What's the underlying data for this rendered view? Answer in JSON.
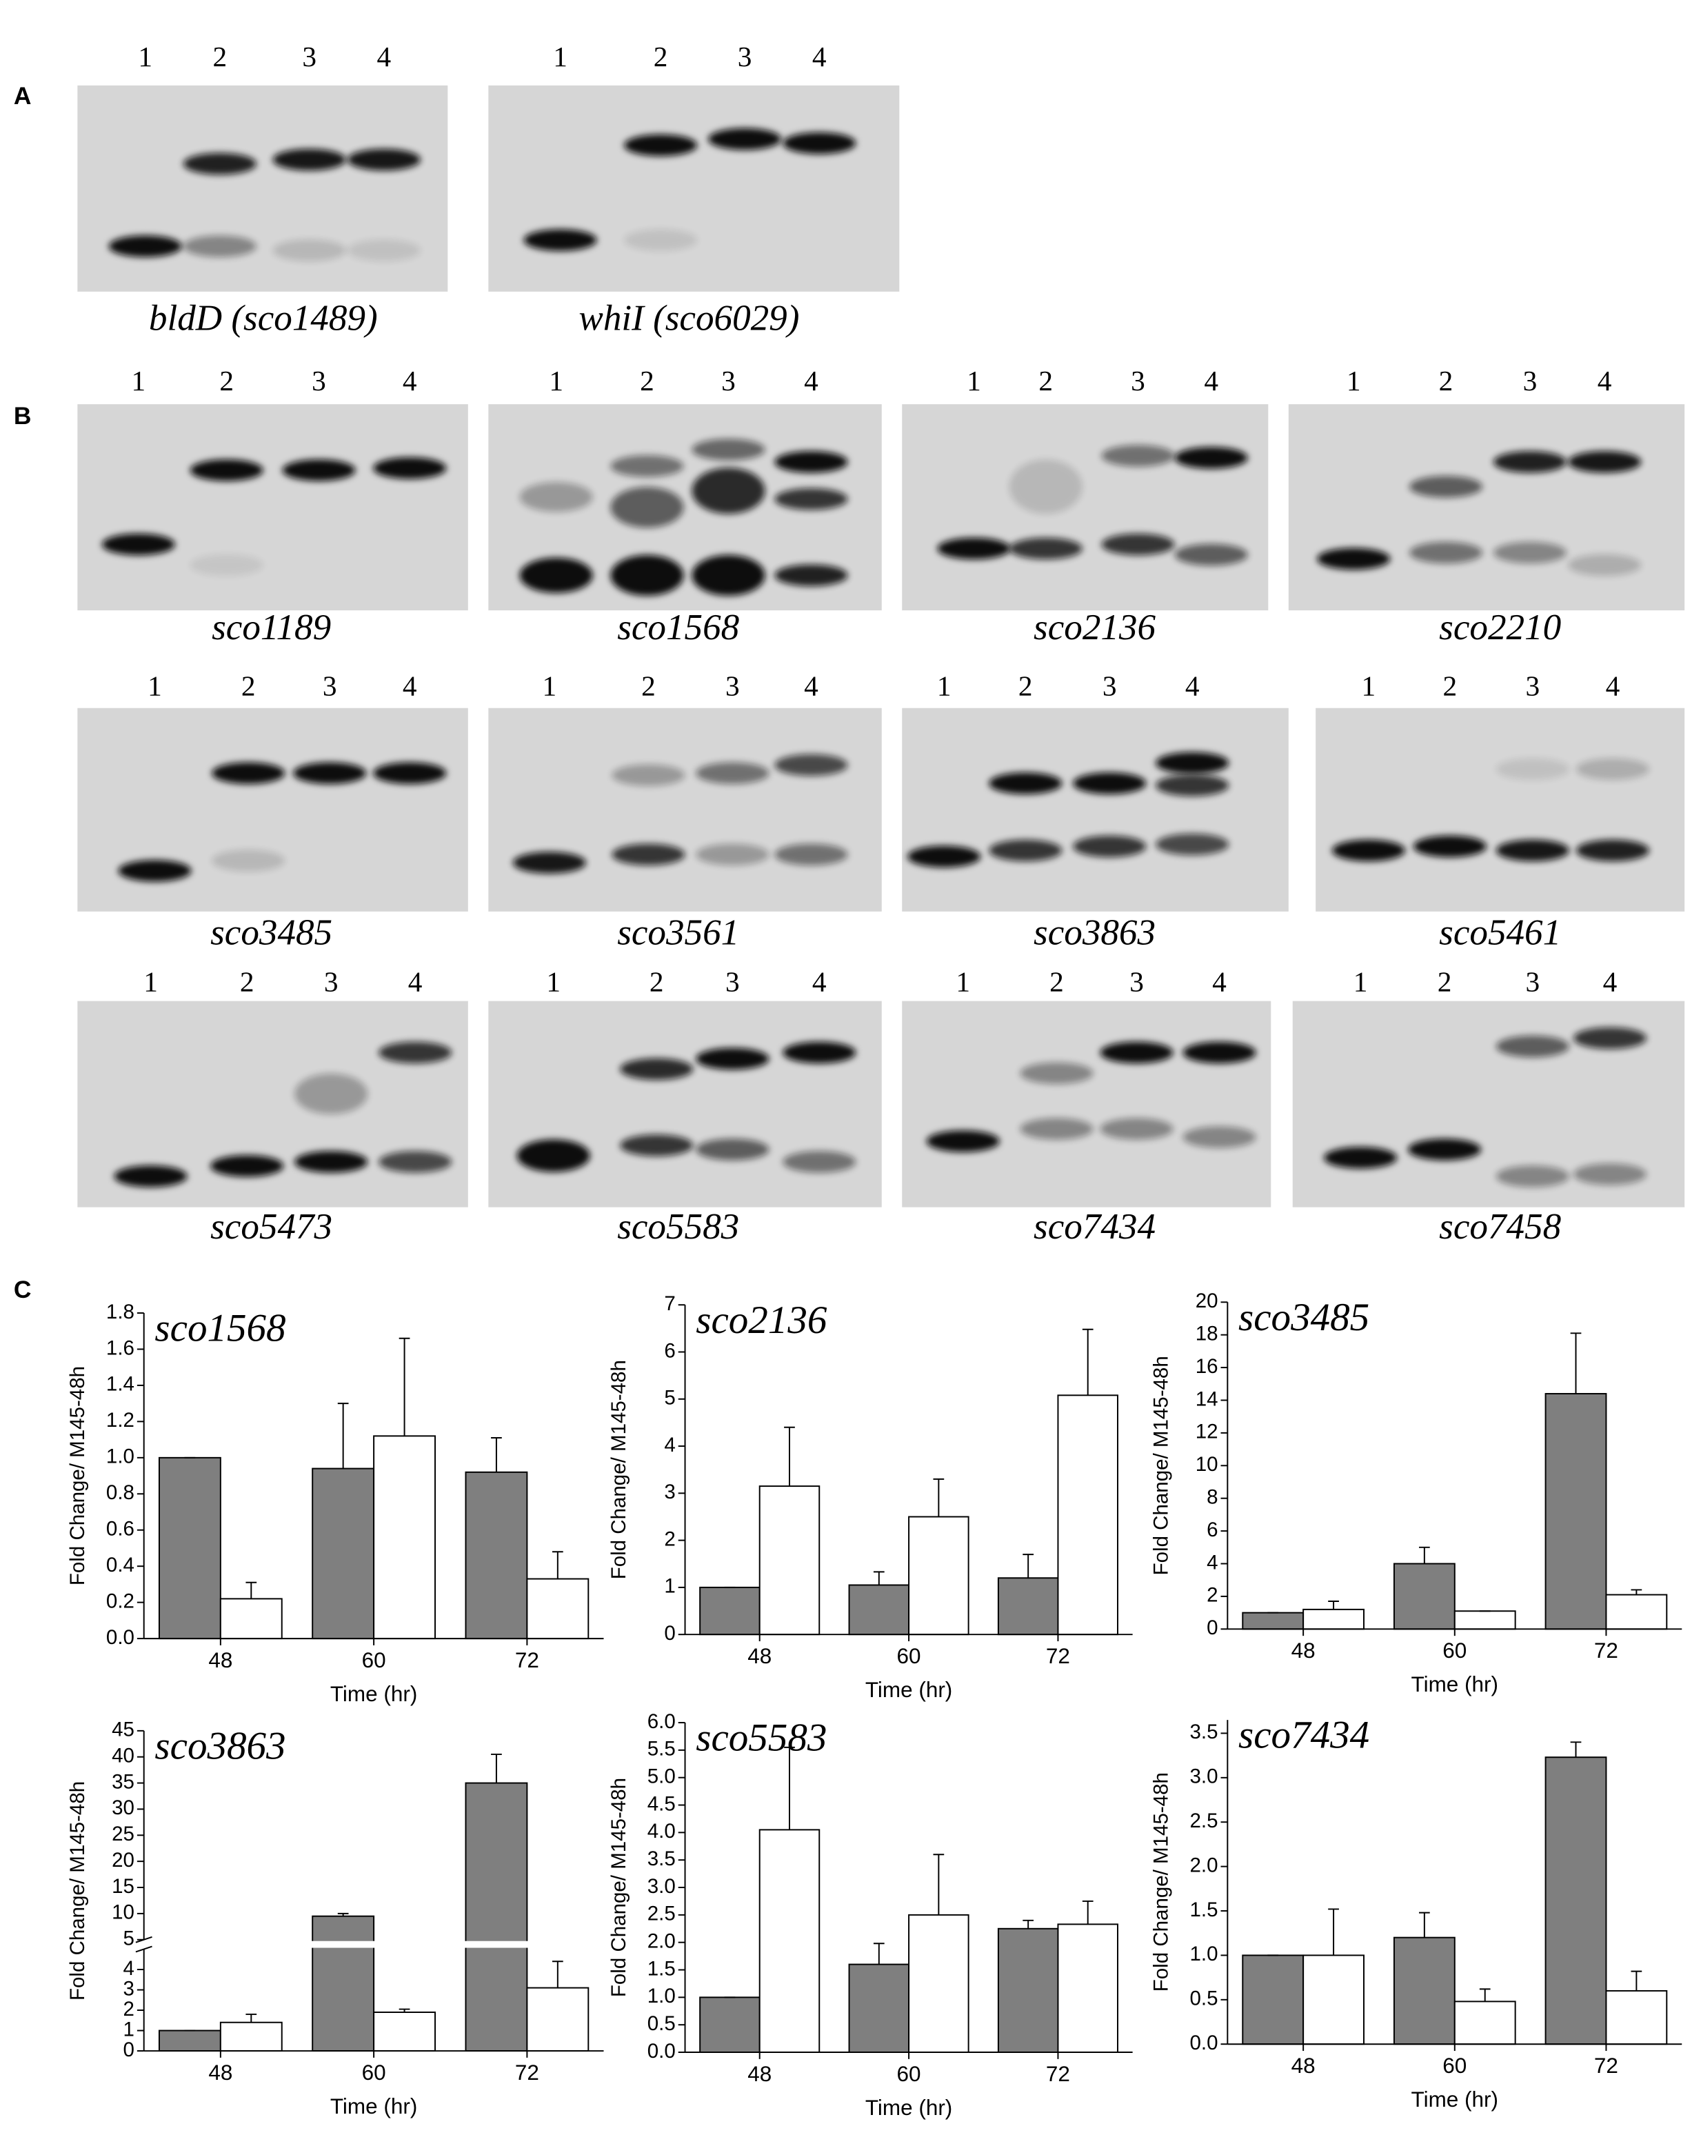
{
  "panel_labels": [
    "A",
    "B",
    "C"
  ],
  "gels": [
    {
      "lanes": [
        "1",
        "2",
        "3",
        "4"
      ],
      "caption": "bldD (sco1489)"
    },
    {
      "lanes": [
        "1",
        "2",
        "3",
        "4"
      ],
      "caption": "whiI (sco6029)"
    },
    {
      "lanes": [
        "1",
        "2",
        "3",
        "4"
      ],
      "caption": "sco1189"
    },
    {
      "lanes": [
        "1",
        "2",
        "3",
        "4"
      ],
      "caption": "sco1568"
    },
    {
      "lanes": [
        "1",
        "2",
        "3",
        "4"
      ],
      "caption": "sco2136"
    },
    {
      "lanes": [
        "1",
        "2",
        "3",
        "4"
      ],
      "caption": "sco2210"
    },
    {
      "lanes": [
        "1",
        "2",
        "3",
        "4"
      ],
      "caption": "sco3485"
    },
    {
      "lanes": [
        "1",
        "2",
        "3",
        "4"
      ],
      "caption": "sco3561"
    },
    {
      "lanes": [
        "1",
        "2",
        "3",
        "4"
      ],
      "caption": "sco3863"
    },
    {
      "lanes": [
        "1",
        "2",
        "3",
        "4"
      ],
      "caption": "sco5461"
    },
    {
      "lanes": [
        "1",
        "2",
        "3",
        "4"
      ],
      "caption": "sco5473"
    },
    {
      "lanes": [
        "1",
        "2",
        "3",
        "4"
      ],
      "caption": "sco5583"
    },
    {
      "lanes": [
        "1",
        "2",
        "3",
        "4"
      ],
      "caption": "sco7434"
    },
    {
      "lanes": [
        "1",
        "2",
        "3",
        "4"
      ],
      "caption": "sco7458"
    }
  ],
  "chart_data": [
    {
      "type": "bar",
      "title": "sco1568",
      "categories": [
        "48",
        "60",
        "72"
      ],
      "x_label": "Time (hr)",
      "y_label": "Fold Change/ M145-48h",
      "ylim": [
        0,
        1.8
      ],
      "yticks": [
        {
          "value": 0,
          "label": "0.0"
        },
        0.2,
        0.4,
        0.6,
        0.8,
        {
          "value": 1,
          "label": "1.0"
        },
        1.2,
        1.4,
        1.6,
        1.8
      ],
      "series": [
        {
          "color": "#7f7f7f",
          "values": [
            1.0,
            0.94,
            0.92
          ],
          "errors": [
            0,
            0.36,
            0.19
          ]
        },
        {
          "color": "#ffffff",
          "values": [
            0.22,
            1.12,
            0.33
          ],
          "errors": [
            0.09,
            0.54,
            0.15
          ]
        }
      ]
    },
    {
      "type": "bar",
      "title": "sco2136",
      "categories": [
        "48",
        "60",
        "72"
      ],
      "x_label": "Time (hr)",
      "y_label": "Fold Change/ M145-48h",
      "ylim": [
        0,
        7
      ],
      "yticks": [
        0,
        1,
        2,
        3,
        4,
        5,
        6,
        7
      ],
      "series": [
        {
          "color": "#7f7f7f",
          "values": [
            1,
            1.05,
            1.2
          ],
          "errors": [
            0,
            0.28,
            0.5
          ]
        },
        {
          "color": "#ffffff",
          "values": [
            3.15,
            2.5,
            5.08
          ],
          "errors": [
            1.25,
            0.8,
            1.4
          ]
        }
      ]
    },
    {
      "type": "bar",
      "title": "sco3485",
      "categories": [
        "48",
        "60",
        "72"
      ],
      "x_label": "Time (hr)",
      "y_label": "Fold Change/ M145-48h",
      "ylim": [
        0,
        20
      ],
      "yticks": [
        0,
        2,
        4,
        6,
        8,
        10,
        12,
        14,
        16,
        18,
        20
      ],
      "series": [
        {
          "color": "#7f7f7f",
          "values": [
            1,
            4,
            14.4
          ],
          "errors": [
            0,
            1,
            3.7
          ]
        },
        {
          "color": "#ffffff",
          "values": [
            1.2,
            1.1,
            2.1
          ],
          "errors": [
            0.5,
            0,
            0.3
          ]
        }
      ]
    },
    {
      "type": "bar",
      "title": "sco3863",
      "categories": [
        "48",
        "60",
        "72"
      ],
      "x_label": "Time (hr)",
      "y_label": "Fold Change/ M145-48h",
      "ylim": [
        0,
        45
      ],
      "ybreak": 5,
      "yticks": [
        0,
        1,
        2,
        3,
        4,
        5,
        10,
        15,
        20,
        25,
        30,
        35,
        40,
        45
      ],
      "series": [
        {
          "color": "#7f7f7f",
          "values": [
            1,
            9.5,
            35
          ],
          "errors": [
            0,
            0.5,
            5.5
          ]
        },
        {
          "color": "#ffffff",
          "values": [
            1.4,
            1.9,
            3.1
          ],
          "errors": [
            0.4,
            0.15,
            1.3
          ]
        }
      ]
    },
    {
      "type": "bar",
      "title": "sco5583",
      "categories": [
        "48",
        "60",
        "72"
      ],
      "x_label": "Time (hr)",
      "y_label": "Fold Change/ M145-48h",
      "ylim": [
        0,
        6
      ],
      "yticks": [
        {
          "value": 0,
          "label": "0.0"
        },
        0.5,
        {
          "value": 1,
          "label": "1.0"
        },
        1.5,
        {
          "value": 2,
          "label": "2.0"
        },
        2.5,
        {
          "value": 3,
          "label": "3.0"
        },
        3.5,
        {
          "value": 4,
          "label": "4.0"
        },
        4.5,
        {
          "value": 5,
          "label": "5.0"
        },
        5.5,
        {
          "value": 6,
          "label": "6.0"
        }
      ],
      "series": [
        {
          "color": "#7f7f7f",
          "values": [
            1,
            1.6,
            2.25
          ],
          "errors": [
            0,
            0.38,
            0.15
          ]
        },
        {
          "color": "#ffffff",
          "values": [
            4.05,
            2.5,
            2.33
          ],
          "errors": [
            1.5,
            1.1,
            0.42
          ]
        }
      ]
    },
    {
      "type": "bar",
      "title": "sco7434",
      "categories": [
        "48",
        "60",
        "72"
      ],
      "x_label": "Time (hr)",
      "y_label": "Fold Change/ M145-48h",
      "ylim": [
        0,
        3.65
      ],
      "yticks": [
        {
          "value": 0,
          "label": "0.0"
        },
        0.5,
        {
          "value": 1,
          "label": "1.0"
        },
        1.5,
        {
          "value": 2,
          "label": "2.0"
        },
        2.5,
        {
          "value": 3,
          "label": "3.0"
        },
        3.5
      ],
      "series": [
        {
          "color": "#7f7f7f",
          "values": [
            1,
            1.2,
            3.23
          ],
          "errors": [
            0,
            0.28,
            0.17
          ]
        },
        {
          "color": "#ffffff",
          "values": [
            1,
            0.48,
            0.6
          ],
          "errors": [
            0.52,
            0.14,
            0.22
          ]
        }
      ]
    }
  ]
}
